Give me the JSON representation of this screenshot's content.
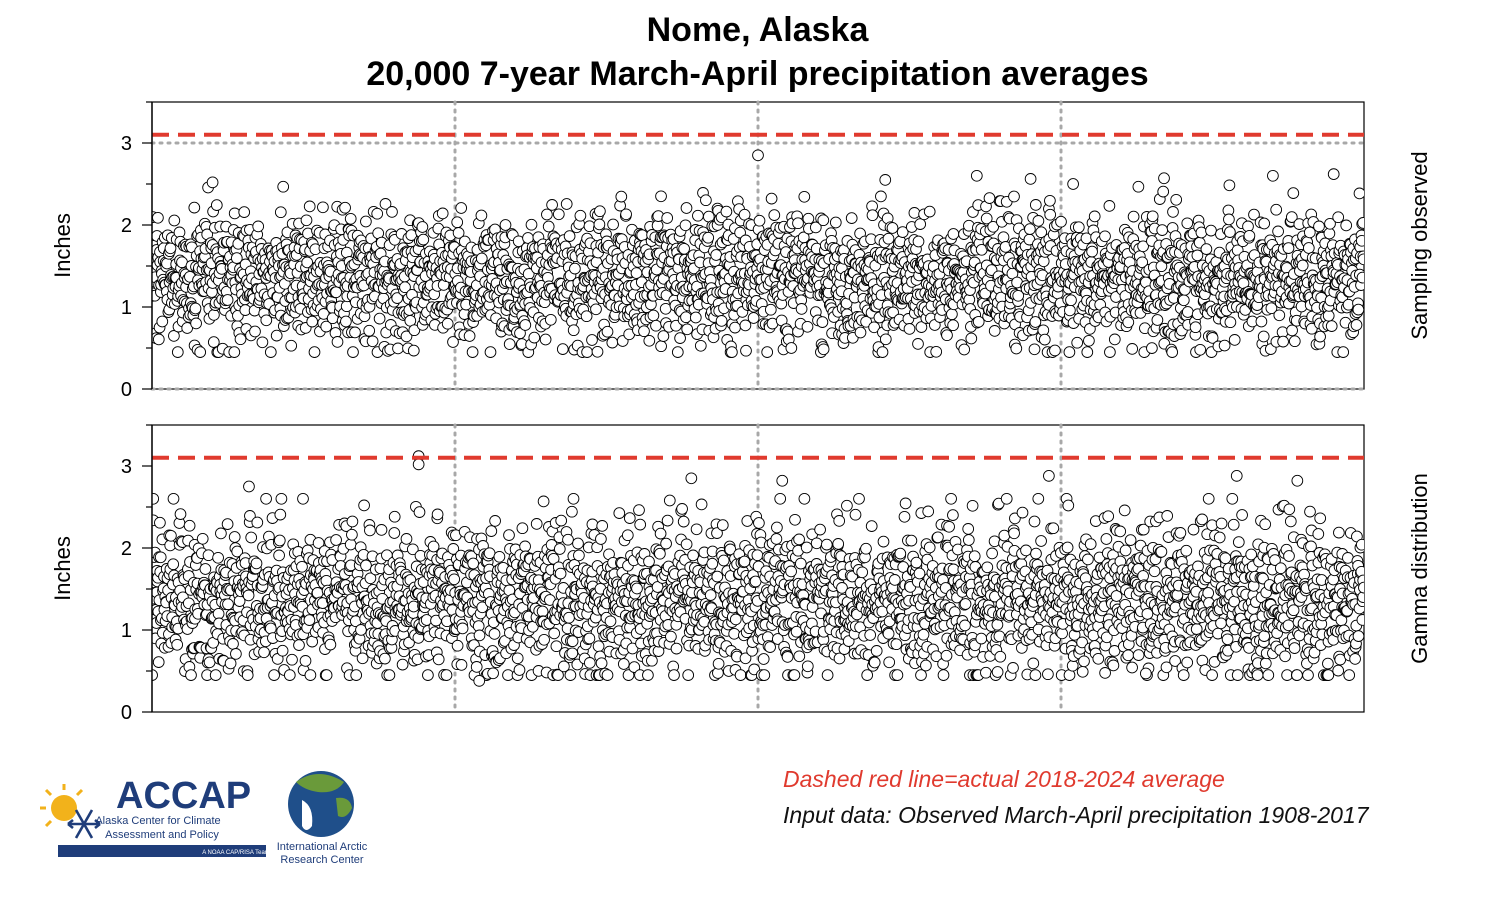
{
  "title": {
    "line1": "Nome, Alaska",
    "line2": "20,000 7-year March-April precipitation averages"
  },
  "notes": {
    "red": "Dashed red line=actual 2018-2024 average",
    "black": "Input data: Observed March-April precipitation 1908-2017"
  },
  "logos": {
    "accap": {
      "name": "ACCAP",
      "line1": "Alaska Center for Climate",
      "line2": "Assessment and Policy",
      "tag": "A NOAA CAP/RISA Team",
      "icon": "sun-snowflake-icon"
    },
    "iarc": {
      "line1": "International Arctic",
      "line2": "Research Center",
      "icon": "globe-icon"
    }
  },
  "colors": {
    "reference_line": "#e03a2e",
    "grid": "#a8a8a8",
    "marker_edge": "#000000",
    "accap_blue": "#1f3d7a",
    "sun": "#f2b21b"
  },
  "chart_data": [
    {
      "type": "scatter",
      "panel": "top",
      "ylabel": "Inches",
      "side_label": "Sampling observed",
      "ylim": [
        0,
        3.5
      ],
      "yticks": [
        0,
        1,
        2,
        3
      ],
      "xlim": [
        0,
        20000
      ],
      "x_gridlines": [
        5000,
        10000,
        15000
      ],
      "y_gridlines": [
        0,
        3
      ],
      "reference_line": {
        "y": 3.1,
        "style": "dashed",
        "color": "#e03a2e"
      },
      "marker": "open-circle",
      "distribution": {
        "n": 20000,
        "center": 1.35,
        "typical_min": 0.6,
        "typical_max": 2.2
      },
      "outliers": [
        {
          "x": 10000,
          "y": 2.85
        },
        {
          "x": 19500,
          "y": 2.62
        },
        {
          "x": 1000,
          "y": 2.52
        },
        {
          "x": 8400,
          "y": 2.35
        },
        {
          "x": 15200,
          "y": 2.5
        },
        {
          "x": 12100,
          "y": 2.55
        },
        {
          "x": 16700,
          "y": 2.57
        },
        {
          "x": 14900,
          "y": 0.47
        },
        {
          "x": 17700,
          "y": 0.53
        },
        {
          "x": 10550,
          "y": 0.5
        }
      ]
    },
    {
      "type": "scatter",
      "panel": "bottom",
      "ylabel": "Inches",
      "side_label": "Gamma distribution",
      "ylim": [
        0,
        3.5
      ],
      "yticks": [
        0,
        1,
        2,
        3
      ],
      "xlim": [
        0,
        20000
      ],
      "x_gridlines": [
        5000,
        10000,
        15000
      ],
      "y_gridlines": [],
      "reference_line": {
        "y": 3.1,
        "style": "dashed",
        "color": "#e03a2e"
      },
      "marker": "open-circle",
      "distribution": {
        "n": 20000,
        "center": 1.35,
        "typical_min": 0.55,
        "typical_max": 2.3
      },
      "outliers": [
        {
          "x": 4400,
          "y": 3.12
        },
        {
          "x": 4400,
          "y": 3.02
        },
        {
          "x": 14800,
          "y": 2.88
        },
        {
          "x": 8900,
          "y": 2.85
        },
        {
          "x": 10400,
          "y": 2.82
        },
        {
          "x": 17900,
          "y": 2.88
        },
        {
          "x": 18900,
          "y": 2.82
        },
        {
          "x": 1600,
          "y": 2.75
        },
        {
          "x": 16400,
          "y": 0.47
        },
        {
          "x": 5400,
          "y": 0.38
        }
      ]
    }
  ]
}
